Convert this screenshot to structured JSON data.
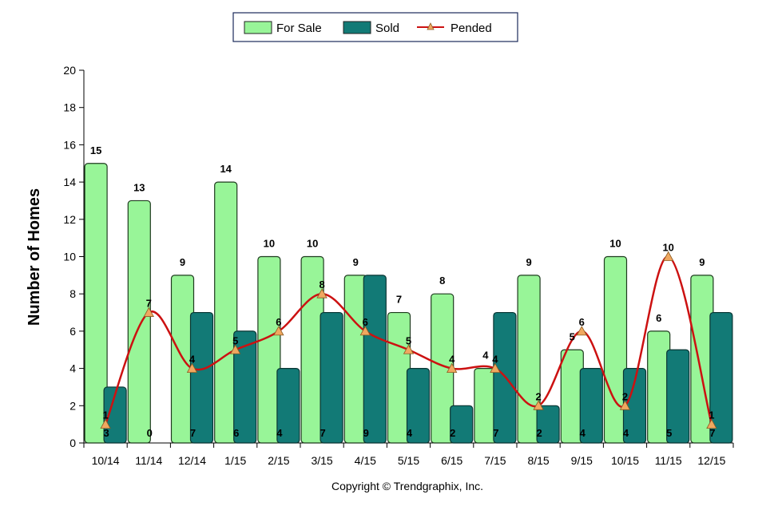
{
  "chart_data": {
    "type": "bar",
    "categories": [
      "10/14",
      "11/14",
      "12/14",
      "1/15",
      "2/15",
      "3/15",
      "4/15",
      "5/15",
      "6/15",
      "7/15",
      "8/15",
      "9/15",
      "10/15",
      "11/15",
      "12/15"
    ],
    "series": [
      {
        "name": "For Sale",
        "kind": "bar",
        "color": "#98f598",
        "values": [
          15,
          13,
          9,
          14,
          10,
          10,
          9,
          7,
          8,
          4,
          9,
          5,
          10,
          6,
          9
        ]
      },
      {
        "name": "Sold",
        "kind": "bar",
        "color": "#127a76",
        "values": [
          3,
          0,
          7,
          6,
          4,
          7,
          9,
          4,
          2,
          7,
          2,
          4,
          4,
          5,
          7
        ]
      },
      {
        "name": "Pended",
        "kind": "line",
        "color": "#cc1111",
        "marker_color": "#f0a860",
        "values": [
          1,
          7,
          4,
          5,
          6,
          8,
          6,
          5,
          4,
          4,
          2,
          6,
          2,
          10,
          1
        ]
      }
    ],
    "ylabel": "Number of Homes",
    "ylim": [
      0,
      20
    ],
    "yticks": [
      0,
      2,
      4,
      6,
      8,
      10,
      12,
      14,
      16,
      18,
      20
    ],
    "legend_position": "top-center"
  },
  "footer": "Copyright © Trendgraphix, Inc."
}
